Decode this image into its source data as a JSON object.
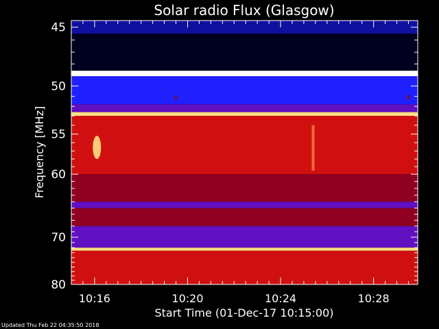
{
  "footer": "Updated Thu Feb 22 04:35:50 2018",
  "chart_data": {
    "type": "heatmap",
    "title": "Solar radio Flux (Glasgow)",
    "xlabel": "Start Time (01-Dec-17 10:15:00)",
    "ylabel": "Frequency [MHz]",
    "x_ticks": [
      "10:16",
      "10:20",
      "10:24",
      "10:28"
    ],
    "x_tick_minutes": [
      16,
      20,
      24,
      28
    ],
    "xlim_minutes": [
      15,
      29.9
    ],
    "y_ticks": [
      45,
      50,
      55,
      60,
      70,
      80
    ],
    "ylim": [
      44.5,
      80
    ],
    "y_scale": "reciprocal",
    "colormap": [
      "#000020",
      "#1010a0",
      "#2020ff",
      "#6010c0",
      "#900020",
      "#d01010",
      "#ff2020",
      "#ff8040",
      "#ffe080",
      "#ffffff"
    ],
    "bands": [
      {
        "from": 44.5,
        "to": 45.5,
        "level": 1
      },
      {
        "from": 45.5,
        "to": 48.6,
        "level": 0
      },
      {
        "from": 48.6,
        "to": 49.1,
        "level": 9
      },
      {
        "from": 49.1,
        "to": 51.8,
        "level": 2
      },
      {
        "from": 51.8,
        "to": 52.6,
        "level": 3
      },
      {
        "from": 52.6,
        "to": 53.0,
        "level": 8
      },
      {
        "from": 53.0,
        "to": 60.0,
        "level": 5
      },
      {
        "from": 60.0,
        "to": 64.0,
        "level": 4
      },
      {
        "from": 64.0,
        "to": 65.0,
        "level": 3
      },
      {
        "from": 65.0,
        "to": 68.0,
        "level": 4
      },
      {
        "from": 68.0,
        "to": 72.0,
        "level": 3
      },
      {
        "from": 72.0,
        "to": 72.6,
        "level": 8
      },
      {
        "from": 72.6,
        "to": 80.0,
        "level": 5
      }
    ],
    "features": [
      {
        "kind": "burst",
        "minute": 16.1,
        "freq_from": 55.2,
        "freq_to": 58.0,
        "level": 8
      },
      {
        "kind": "vertical",
        "minute": 25.4,
        "freq_from": 54.0,
        "freq_to": 59.5,
        "level": 7
      },
      {
        "kind": "dot",
        "minute": 19.5,
        "freq": 51.1,
        "level": 4
      },
      {
        "kind": "dot",
        "minute": 29.5,
        "freq": 51.1,
        "level": 4
      }
    ]
  }
}
